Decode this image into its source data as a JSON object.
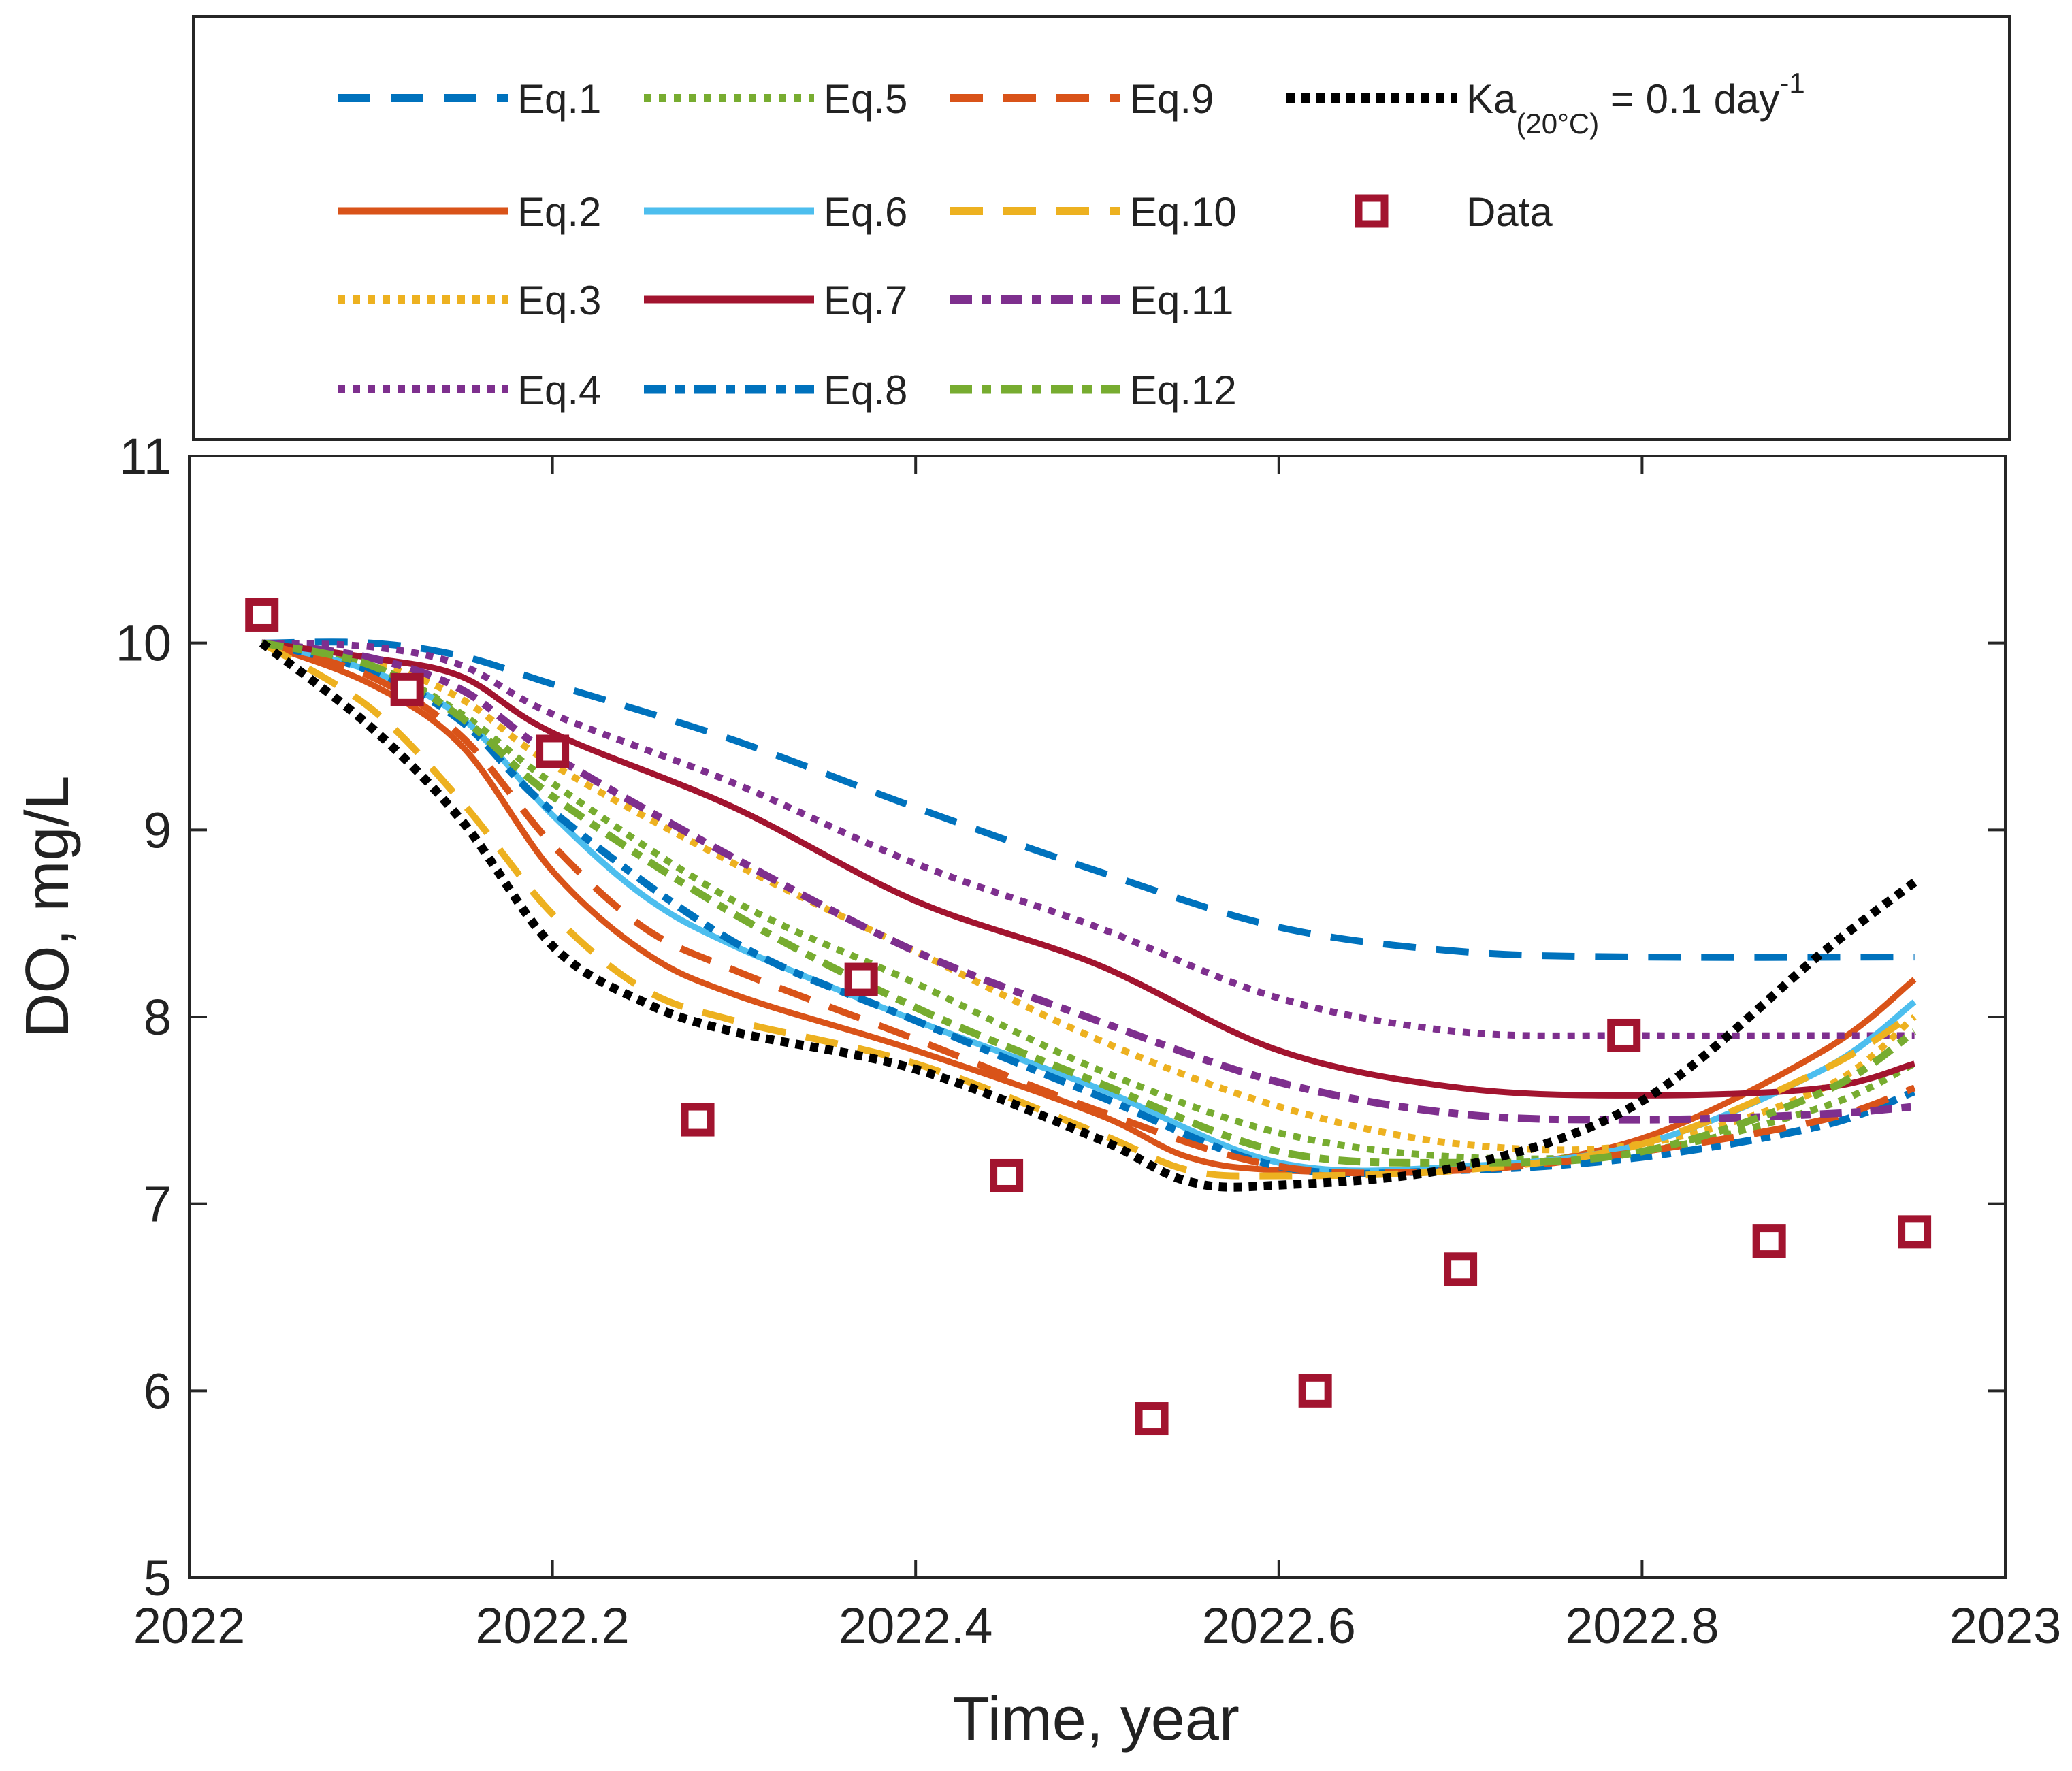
{
  "chart_data": {
    "type": "line",
    "title": "",
    "xlabel": "Time, year",
    "ylabel": "DO, mg/L",
    "xlim": [
      2022,
      2023
    ],
    "ylim": [
      5,
      11
    ],
    "xticks": [
      2022,
      2022.2,
      2022.4,
      2022.6,
      2022.8,
      2023
    ],
    "xtick_labels": [
      "2022",
      "2022.2",
      "2022.4",
      "2022.6",
      "2022.8",
      "2023"
    ],
    "yticks": [
      5,
      6,
      7,
      8,
      9,
      10,
      11
    ],
    "ytick_labels": [
      "5",
      "6",
      "7",
      "8",
      "9",
      "10",
      "11"
    ],
    "grid": false,
    "legend_position": "top (boxed, above the plot)",
    "ka_label": {
      "main": "Ka",
      "sub": "(20°C)",
      "mid": " = 0.1 day",
      "sup": "-1"
    },
    "series": [
      {
        "name": "Eq.1",
        "color": "#0072BD",
        "dash": "dashed",
        "x": [
          2022.04,
          2022.1,
          2022.15,
          2022.2,
          2022.3,
          2022.4,
          2022.5,
          2022.6,
          2022.7,
          2022.8,
          2022.95
        ],
        "y": [
          10.0,
          10.0,
          9.93,
          9.78,
          9.48,
          9.12,
          8.78,
          8.48,
          8.35,
          8.32,
          8.32
        ]
      },
      {
        "name": "Eq.2",
        "color": "#D95319",
        "dash": "solid",
        "x": [
          2022.04,
          2022.1,
          2022.15,
          2022.2,
          2022.25,
          2022.3,
          2022.4,
          2022.5,
          2022.55,
          2022.6,
          2022.7,
          2022.8,
          2022.9,
          2022.95
        ],
        "y": [
          10.0,
          9.78,
          9.45,
          8.78,
          8.35,
          8.12,
          7.82,
          7.48,
          7.25,
          7.18,
          7.18,
          7.35,
          7.82,
          8.2
        ]
      },
      {
        "name": "Eq.3",
        "color": "#EDB120",
        "dash": "dotted",
        "x": [
          2022.04,
          2022.1,
          2022.15,
          2022.2,
          2022.3,
          2022.4,
          2022.5,
          2022.6,
          2022.7,
          2022.8,
          2022.9,
          2022.95
        ],
        "y": [
          10.0,
          9.9,
          9.7,
          9.35,
          8.82,
          8.35,
          7.88,
          7.52,
          7.32,
          7.32,
          7.62,
          8.0
        ]
      },
      {
        "name": "Eq.4",
        "color": "#7E2F8E",
        "dash": "dotted",
        "x": [
          2022.04,
          2022.1,
          2022.15,
          2022.2,
          2022.3,
          2022.4,
          2022.5,
          2022.6,
          2022.7,
          2022.8,
          2022.9,
          2022.95
        ],
        "y": [
          10.0,
          9.98,
          9.88,
          9.62,
          9.25,
          8.82,
          8.48,
          8.1,
          7.92,
          7.9,
          7.9,
          7.9
        ]
      },
      {
        "name": "Eq.5",
        "color": "#77AC30",
        "dash": "dotted",
        "x": [
          2022.04,
          2022.1,
          2022.15,
          2022.2,
          2022.3,
          2022.4,
          2022.5,
          2022.6,
          2022.7,
          2022.8,
          2022.9,
          2022.95
        ],
        "y": [
          10.0,
          9.88,
          9.62,
          9.25,
          8.62,
          8.18,
          7.72,
          7.38,
          7.25,
          7.28,
          7.52,
          7.75
        ]
      },
      {
        "name": "Eq.6",
        "color": "#4DBEEE",
        "dash": "solid",
        "x": [
          2022.04,
          2022.1,
          2022.15,
          2022.2,
          2022.25,
          2022.3,
          2022.4,
          2022.5,
          2022.6,
          2022.7,
          2022.8,
          2022.9,
          2022.95
        ],
        "y": [
          10.0,
          9.85,
          9.6,
          9.08,
          8.65,
          8.38,
          7.98,
          7.62,
          7.22,
          7.2,
          7.32,
          7.72,
          8.08
        ]
      },
      {
        "name": "Eq.7",
        "color": "#A2142F",
        "dash": "solid",
        "x": [
          2022.04,
          2022.1,
          2022.15,
          2022.2,
          2022.3,
          2022.4,
          2022.5,
          2022.6,
          2022.7,
          2022.8,
          2022.9,
          2022.95
        ],
        "y": [
          10.0,
          9.92,
          9.82,
          9.52,
          9.12,
          8.62,
          8.28,
          7.82,
          7.62,
          7.58,
          7.62,
          7.75
        ]
      },
      {
        "name": "Eq.8",
        "color": "#0072BD",
        "dash": "dashdot",
        "x": [
          2022.04,
          2022.1,
          2022.15,
          2022.2,
          2022.3,
          2022.4,
          2022.5,
          2022.6,
          2022.7,
          2022.8,
          2022.9,
          2022.95
        ],
        "y": [
          10.0,
          9.85,
          9.58,
          9.1,
          8.4,
          7.98,
          7.58,
          7.2,
          7.18,
          7.25,
          7.42,
          7.6
        ]
      },
      {
        "name": "Eq.9",
        "color": "#D95319",
        "dash": "dashed",
        "x": [
          2022.04,
          2022.1,
          2022.15,
          2022.2,
          2022.25,
          2022.3,
          2022.4,
          2022.5,
          2022.6,
          2022.7,
          2022.8,
          2022.9,
          2022.95
        ],
        "y": [
          10.0,
          9.82,
          9.5,
          8.92,
          8.48,
          8.25,
          7.88,
          7.5,
          7.2,
          7.18,
          7.28,
          7.45,
          7.62
        ]
      },
      {
        "name": "Eq.10",
        "color": "#EDB120",
        "dash": "dashed",
        "x": [
          2022.04,
          2022.1,
          2022.15,
          2022.2,
          2022.25,
          2022.3,
          2022.4,
          2022.5,
          2022.55,
          2022.6,
          2022.7,
          2022.8,
          2022.9,
          2022.95
        ],
        "y": [
          10.0,
          9.65,
          9.15,
          8.55,
          8.15,
          7.98,
          7.75,
          7.38,
          7.18,
          7.15,
          7.18,
          7.32,
          7.72,
          8.02
        ]
      },
      {
        "name": "Eq.11",
        "color": "#7E2F8E",
        "dash": "dashdot",
        "x": [
          2022.04,
          2022.1,
          2022.15,
          2022.2,
          2022.3,
          2022.4,
          2022.5,
          2022.6,
          2022.7,
          2022.8,
          2022.9,
          2022.95
        ],
        "y": [
          10.0,
          9.92,
          9.75,
          9.4,
          8.85,
          8.35,
          7.98,
          7.65,
          7.48,
          7.45,
          7.48,
          7.52
        ]
      },
      {
        "name": "Eq.12",
        "color": "#77AC30",
        "dash": "dashdot",
        "x": [
          2022.04,
          2022.1,
          2022.15,
          2022.2,
          2022.3,
          2022.4,
          2022.5,
          2022.6,
          2022.7,
          2022.8,
          2022.9,
          2022.95
        ],
        "y": [
          10.0,
          9.88,
          9.6,
          9.18,
          8.55,
          8.05,
          7.65,
          7.28,
          7.22,
          7.28,
          7.6,
          7.92
        ]
      },
      {
        "name": "Ka(20°C) = 0.1 day-1",
        "color": "#000000",
        "dash": "bigdot",
        "x": [
          2022.04,
          2022.1,
          2022.15,
          2022.2,
          2022.25,
          2022.3,
          2022.4,
          2022.5,
          2022.55,
          2022.6,
          2022.7,
          2022.8,
          2022.9,
          2022.95
        ],
        "y": [
          10.0,
          9.55,
          9.05,
          8.38,
          8.08,
          7.92,
          7.72,
          7.35,
          7.12,
          7.1,
          7.2,
          7.55,
          8.35,
          8.72
        ]
      }
    ],
    "data_points": {
      "name": "Data",
      "color": "#A2142F",
      "x": [
        2022.04,
        2022.12,
        2022.2,
        2022.28,
        2022.37,
        2022.45,
        2022.53,
        2022.62,
        2022.7,
        2022.79,
        2022.87,
        2022.95
      ],
      "y": [
        10.15,
        9.75,
        9.42,
        7.45,
        8.2,
        7.15,
        5.85,
        6.0,
        6.65,
        7.9,
        6.8,
        6.85
      ]
    }
  }
}
